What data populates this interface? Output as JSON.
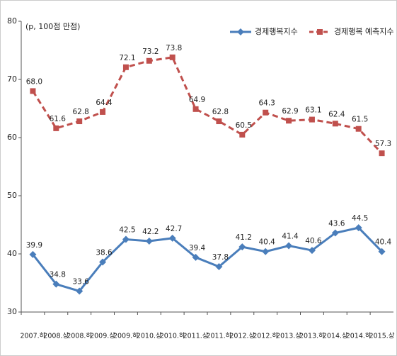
{
  "chart_data": {
    "type": "line",
    "unit": "(p, 100점 만점)",
    "categories": [
      "2007.하",
      "2008.상",
      "2008.하",
      "2009.상",
      "2009.하",
      "2010.상",
      "2010.하",
      "2011.상",
      "2011.하",
      "2012.상",
      "2012.하",
      "2013.상",
      "2013.하",
      "2014.상",
      "2014.하",
      "2015.상"
    ],
    "series": [
      {
        "name": "경제행복지수",
        "color": "#4a7ebb",
        "dashed": false,
        "marker": "diamond",
        "values": [
          39.9,
          34.8,
          33.6,
          38.6,
          42.5,
          42.2,
          42.7,
          39.4,
          37.8,
          41.2,
          40.4,
          41.4,
          40.6,
          43.6,
          44.5,
          40.4
        ],
        "value_labels": [
          "39.9",
          "34.8",
          "33.6",
          "38.6",
          "42.5",
          "42.2",
          "42.7",
          "39.4",
          "37.8",
          "41.2",
          "40.4",
          "41.4",
          "40.6",
          "43.6",
          "44.5",
          "40.4"
        ]
      },
      {
        "name": "경제행복 예측지수",
        "color": "#c0504d",
        "dashed": true,
        "marker": "square",
        "values": [
          68.0,
          61.6,
          62.8,
          64.4,
          72.1,
          73.2,
          73.8,
          64.9,
          62.8,
          60.5,
          64.3,
          62.9,
          63.1,
          62.4,
          61.5,
          57.3
        ],
        "value_labels": [
          "68.0",
          "61.6",
          "62.8",
          "64.4",
          "72.1",
          "73.2",
          "73.8",
          "64.9",
          "62.8",
          "60.5",
          "64.3",
          "62.9",
          "63.1",
          "62.4",
          "61.5",
          "57.3"
        ]
      }
    ],
    "ylim": [
      30,
      80
    ],
    "yticks": [
      30,
      40,
      50,
      60,
      70,
      80
    ],
    "grid": false,
    "legend": "upper right"
  }
}
